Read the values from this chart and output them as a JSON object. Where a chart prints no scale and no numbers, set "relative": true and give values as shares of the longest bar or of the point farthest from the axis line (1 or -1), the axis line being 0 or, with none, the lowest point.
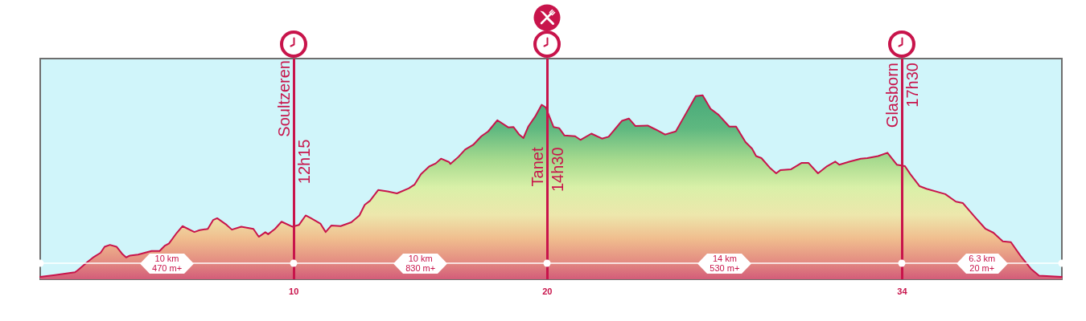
{
  "chart_data": {
    "type": "area",
    "relative": true,
    "color": "#c8144b",
    "x": [
      0,
      0.58,
      1.37,
      1.48,
      1.85,
      2.12,
      2.38,
      2.54,
      2.75,
      3.01,
      3.23,
      3.39,
      3.54,
      3.86,
      4.39,
      4.71,
      4.92,
      5.08,
      5.39,
      5.61,
      6.08,
      6.29,
      6.61,
      6.82,
      6.98,
      7.35,
      7.56,
      7.93,
      8.41,
      8.62,
      8.88,
      8.99,
      9.26,
      9.52,
      9.94,
      10.21,
      10.47,
      10.68,
      11.05,
      11.26,
      11.48,
      11.85,
      12.27,
      12.59,
      12.8,
      13.01,
      13.33,
      13.7,
      14.07,
      14.54,
      14.76,
      15.02,
      15.34,
      15.6,
      15.81,
      16.13,
      16.18,
      16.5,
      16.76,
      17.08,
      17.4,
      17.67,
      18.03,
      18.46,
      18.67,
      18.88,
      19.06,
      19.25,
      19.52,
      19.78,
      19.94,
      20.25,
      20.47,
      20.68,
      21.1,
      21.31,
      21.74,
      22.16,
      22.42,
      22.95,
      23.22,
      23.48,
      23.96,
      24.27,
      24.65,
      25.07,
      25.49,
      25.86,
      26.13,
      26.44,
      26.76,
      27.18,
      27.45,
      27.82,
      28.08,
      28.24,
      28.45,
      28.77,
      29.03,
      29.19,
      29.62,
      30.04,
      30.3,
      30.68,
      31.04,
      31.36,
      31.52,
      31.94,
      32.37,
      32.63,
      33.05,
      33.42,
      33.79,
      34.11,
      34.32,
      34.69,
      34.96,
      35.7,
      36.12,
      36.39,
      36.86,
      37.29,
      37.6,
      37.97,
      38.29,
      38.66,
      39.08,
      39.4,
      40.3
    ],
    "values": [
      0.013,
      0.023,
      0.038,
      0.049,
      0.093,
      0.122,
      0.144,
      0.177,
      0.187,
      0.177,
      0.139,
      0.119,
      0.129,
      0.134,
      0.154,
      0.154,
      0.183,
      0.195,
      0.253,
      0.289,
      0.257,
      0.267,
      0.274,
      0.322,
      0.332,
      0.296,
      0.27,
      0.286,
      0.274,
      0.231,
      0.256,
      0.245,
      0.274,
      0.313,
      0.286,
      0.296,
      0.347,
      0.332,
      0.303,
      0.257,
      0.292,
      0.289,
      0.31,
      0.347,
      0.405,
      0.427,
      0.485,
      0.478,
      0.467,
      0.495,
      0.514,
      0.572,
      0.613,
      0.63,
      0.656,
      0.637,
      0.627,
      0.666,
      0.705,
      0.731,
      0.778,
      0.804,
      0.865,
      0.826,
      0.828,
      0.789,
      0.768,
      0.83,
      0.884,
      0.949,
      0.935,
      0.828,
      0.822,
      0.782,
      0.778,
      0.758,
      0.792,
      0.765,
      0.775,
      0.862,
      0.874,
      0.833,
      0.836,
      0.815,
      0.787,
      0.804,
      0.906,
      0.996,
      1,
      0.927,
      0.894,
      0.83,
      0.83,
      0.746,
      0.71,
      0.67,
      0.659,
      0.608,
      0.576,
      0.593,
      0.598,
      0.633,
      0.633,
      0.576,
      0.615,
      0.64,
      0.623,
      0.64,
      0.656,
      0.659,
      0.67,
      0.688,
      0.623,
      0.615,
      0.572,
      0.506,
      0.492,
      0.463,
      0.422,
      0.415,
      0.34,
      0.274,
      0.253,
      0.206,
      0.202,
      0.129,
      0.057,
      0.02,
      0.013
    ],
    "xlim": [
      0,
      40.3
    ],
    "xticks": [
      10,
      20,
      34
    ],
    "ref_lines": [
      {
        "axis": "x",
        "value": 10,
        "label": "Soultzeren\n12h15",
        "color": "#c8144b"
      },
      {
        "axis": "x",
        "value": 20,
        "label": "Tanet\n14h30",
        "color": "#c8144b"
      },
      {
        "axis": "x",
        "value": 34,
        "label": "Glasborn\n17h30",
        "color": "#c8144b"
      },
      {
        "axis": "y",
        "value": 0.087,
        "label": null,
        "color": "#ffffff"
      }
    ],
    "annotations": [
      "10 km\n470 m+",
      "10 km\n830 m+",
      "14 km\n530 m+",
      "6.3 km\n20 m+"
    ]
  }
}
